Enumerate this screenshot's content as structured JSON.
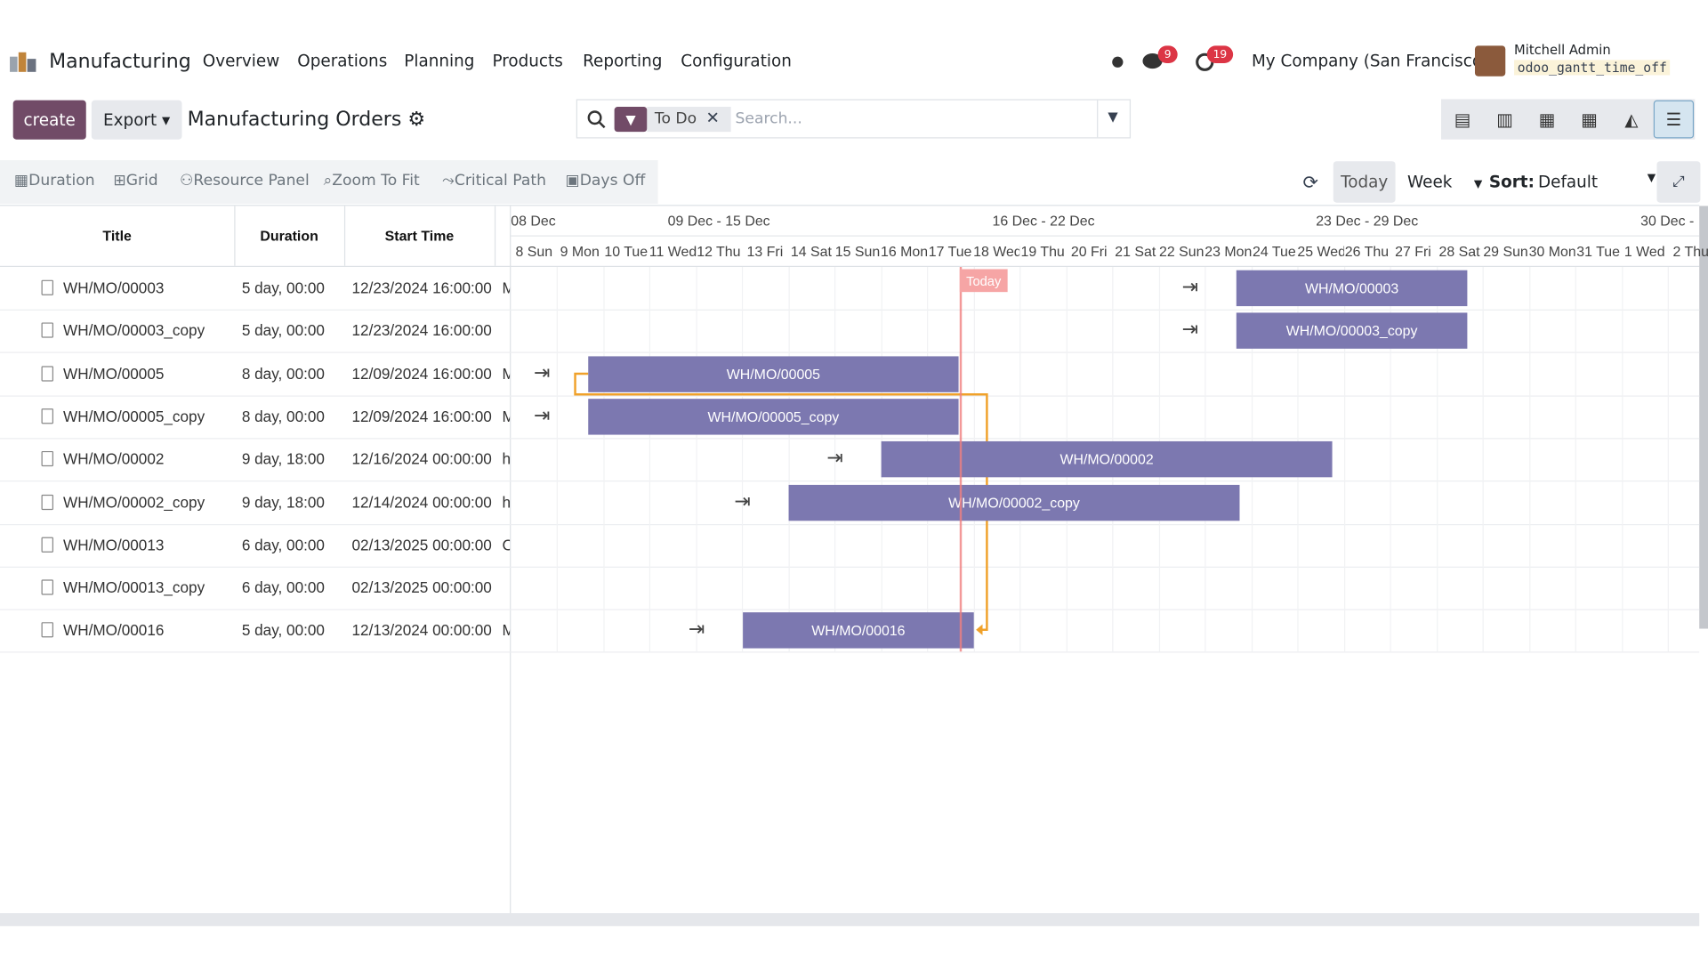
{
  "nav": {
    "app": "Manufacturing",
    "menu": [
      "Overview",
      "Operations",
      "Planning",
      "Products",
      "Reporting",
      "Configuration"
    ],
    "messages_badge": "9",
    "activities_badge": "19",
    "company": "My Company (San Francisco)",
    "user": "Mitchell Admin",
    "database": "odoo_gantt_time_off"
  },
  "control": {
    "create": "create",
    "export": "Export",
    "breadcrumb": "Manufacturing Orders",
    "facet": "To Do",
    "search_placeholder": "Search..."
  },
  "toolbar": {
    "tools": [
      "Duration",
      "Grid",
      "Resource Panel",
      "Zoom To Fit",
      "Critical Path",
      "Days Off"
    ],
    "today": "Today",
    "scale": "Week",
    "sort_label": "Sort:",
    "sort_value": "Default"
  },
  "table": {
    "headers": [
      "Title",
      "Duration",
      "Start Time"
    ],
    "rows": [
      {
        "title": "WH/MO/00003",
        "duration": "5 day, 00:00",
        "start": "12/23/2024 16:00:00",
        "extra": "M"
      },
      {
        "title": "WH/MO/00003_copy",
        "duration": "5 day, 00:00",
        "start": "12/23/2024 16:00:00"
      },
      {
        "title": "WH/MO/00005",
        "duration": "8 day, 00:00",
        "start": "12/09/2024 16:00:00",
        "extra": "M"
      },
      {
        "title": "WH/MO/00005_copy",
        "duration": "8 day, 00:00",
        "start": "12/09/2024 16:00:00",
        "extra": "M"
      },
      {
        "title": "WH/MO/00002",
        "duration": "9 day, 18:00",
        "start": "12/16/2024 00:00:00",
        "extra": "h"
      },
      {
        "title": "WH/MO/00002_copy",
        "duration": "9 day, 18:00",
        "start": "12/14/2024 00:00:00",
        "extra": "h"
      },
      {
        "title": "WH/MO/00013",
        "duration": "6 day, 00:00",
        "start": "02/13/2025 00:00:00",
        "extra": "C"
      },
      {
        "title": "WH/MO/00013_copy",
        "duration": "6 day, 00:00",
        "start": "02/13/2025 00:00:00"
      },
      {
        "title": "WH/MO/00016",
        "duration": "5 day, 00:00",
        "start": "12/13/2024 00:00:00",
        "extra": "M"
      }
    ]
  },
  "gantt": {
    "weeks": [
      "08 Dec",
      "09 Dec - 15 Dec",
      "16 Dec - 22 Dec",
      "23 Dec - 29 Dec",
      "30 Dec -"
    ],
    "days": [
      "8 Sun",
      "9 Mon",
      "10 Tue",
      "11 Wed",
      "12 Thu",
      "13 Fri",
      "14 Sat",
      "15 Sun",
      "16 Mon",
      "17 Tue",
      "18 Wed",
      "19 Thu",
      "20 Fri",
      "21 Sat",
      "22 Sun",
      "23 Mon",
      "24 Tue",
      "25 Wed",
      "26 Thu",
      "27 Fri",
      "28 Sat",
      "29 Sun",
      "30 Mon",
      "31 Tue",
      "1 Wed",
      "2 Thu"
    ],
    "today_label": "Today",
    "bars": [
      "WH/MO/00003",
      "WH/MO/00003_copy",
      "WH/MO/00005",
      "WH/MO/00005_copy",
      "WH/MO/00002",
      "WH/MO/00002_copy",
      "WH/MO/00016"
    ]
  }
}
